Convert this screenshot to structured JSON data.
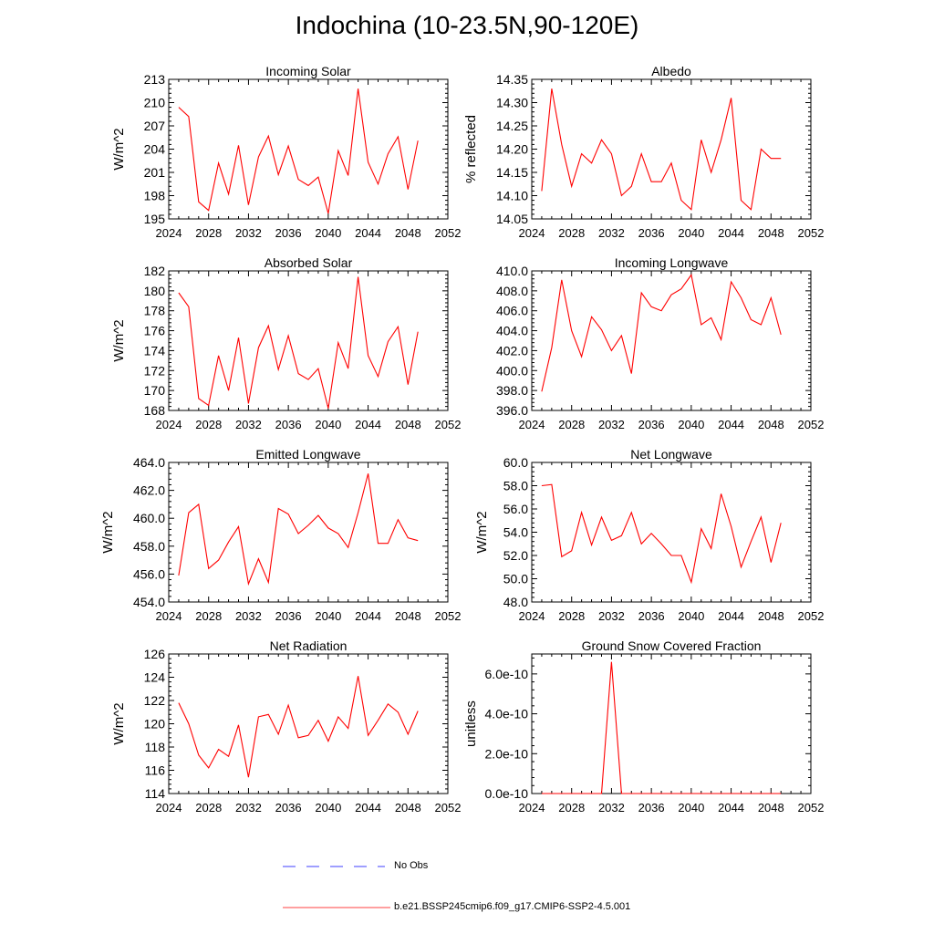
{
  "title": "Indochina (10-23.5N,90-120E)",
  "colors": {
    "model_line": "#ff0000",
    "obs_line": "#0000ff",
    "axis": "#000000"
  },
  "legend": {
    "obs_label": "No Obs",
    "model_label": "b.e21.BSSP245cmip6.f09_g17.CMIP6-SSP2-4.5.001"
  },
  "chart_data": [
    {
      "type": "line",
      "title": "Incoming Solar",
      "ylabel": "W/m^2",
      "x": [
        2025,
        2026,
        2027,
        2028,
        2029,
        2030,
        2031,
        2032,
        2033,
        2034,
        2035,
        2036,
        2037,
        2038,
        2039,
        2040,
        2041,
        2042,
        2043,
        2044,
        2045,
        2046,
        2047,
        2048,
        2049
      ],
      "values": [
        209.4,
        208.2,
        197.2,
        196.1,
        202.2,
        198.2,
        204.5,
        196.8,
        203.0,
        205.7,
        200.7,
        204.4,
        200.1,
        199.3,
        200.4,
        195.7,
        203.8,
        200.6,
        211.8,
        202.3,
        199.5,
        203.4,
        205.6,
        198.8,
        205.1
      ],
      "xlim": [
        2024,
        2052
      ],
      "ylim": [
        195,
        213
      ],
      "xticks": [
        "2024",
        "2028",
        "2032",
        "2036",
        "2040",
        "2044",
        "2048",
        "2052"
      ],
      "yticks": [
        "195",
        "198",
        "201",
        "204",
        "207",
        "210",
        "213"
      ],
      "grid": false
    },
    {
      "type": "line",
      "title": "Albedo",
      "ylabel": "% reflected",
      "x": [
        2025,
        2026,
        2027,
        2028,
        2029,
        2030,
        2031,
        2032,
        2033,
        2034,
        2035,
        2036,
        2037,
        2038,
        2039,
        2040,
        2041,
        2042,
        2043,
        2044,
        2045,
        2046,
        2047,
        2048,
        2049
      ],
      "values": [
        14.11,
        14.33,
        14.21,
        14.12,
        14.19,
        14.17,
        14.22,
        14.19,
        14.1,
        14.12,
        14.19,
        14.13,
        14.13,
        14.17,
        14.09,
        14.07,
        14.22,
        14.15,
        14.22,
        14.31,
        14.09,
        14.07,
        14.2,
        14.18,
        14.18
      ],
      "xlim": [
        2024,
        2052
      ],
      "ylim": [
        14.05,
        14.35
      ],
      "xticks": [
        "2024",
        "2028",
        "2032",
        "2036",
        "2040",
        "2044",
        "2048",
        "2052"
      ],
      "yticks": [
        "14.05",
        "14.10",
        "14.15",
        "14.20",
        "14.25",
        "14.30",
        "14.35"
      ],
      "grid": false
    },
    {
      "type": "line",
      "title": "Absorbed Solar",
      "ylabel": "W/m^2",
      "x": [
        2025,
        2026,
        2027,
        2028,
        2029,
        2030,
        2031,
        2032,
        2033,
        2034,
        2035,
        2036,
        2037,
        2038,
        2039,
        2040,
        2041,
        2042,
        2043,
        2044,
        2045,
        2046,
        2047,
        2048,
        2049
      ],
      "values": [
        179.8,
        178.4,
        169.2,
        168.5,
        173.5,
        170.0,
        175.3,
        168.7,
        174.3,
        176.5,
        172.1,
        175.5,
        171.7,
        171.1,
        172.2,
        168.2,
        174.8,
        172.2,
        181.4,
        173.5,
        171.4,
        174.9,
        176.4,
        170.6,
        175.9
      ],
      "xlim": [
        2024,
        2052
      ],
      "ylim": [
        168,
        182
      ],
      "xticks": [
        "2024",
        "2028",
        "2032",
        "2036",
        "2040",
        "2044",
        "2048",
        "2052"
      ],
      "yticks": [
        "168",
        "170",
        "172",
        "174",
        "176",
        "178",
        "180",
        "182"
      ],
      "grid": false
    },
    {
      "type": "line",
      "title": "Incoming Longwave",
      "ylabel": "",
      "x": [
        2025,
        2026,
        2027,
        2028,
        2029,
        2030,
        2031,
        2032,
        2033,
        2034,
        2035,
        2036,
        2037,
        2038,
        2039,
        2040,
        2041,
        2042,
        2043,
        2044,
        2045,
        2046,
        2047,
        2048,
        2049
      ],
      "values": [
        397.9,
        402.3,
        409.1,
        404.0,
        401.4,
        405.4,
        404.1,
        402.0,
        403.5,
        399.7,
        407.8,
        406.4,
        406.0,
        407.6,
        408.2,
        409.6,
        404.6,
        405.3,
        403.1,
        408.9,
        407.3,
        405.1,
        404.6,
        407.3,
        403.6
      ],
      "xlim": [
        2024,
        2052
      ],
      "ylim": [
        396,
        410
      ],
      "xticks": [
        "2024",
        "2028",
        "2032",
        "2036",
        "2040",
        "2044",
        "2048",
        "2052"
      ],
      "yticks": [
        "396.0",
        "398.0",
        "400.0",
        "402.0",
        "404.0",
        "406.0",
        "408.0",
        "410.0"
      ],
      "grid": false
    },
    {
      "type": "line",
      "title": "Emitted Longwave",
      "ylabel": "W/m^2",
      "x": [
        2025,
        2026,
        2027,
        2028,
        2029,
        2030,
        2031,
        2032,
        2033,
        2034,
        2035,
        2036,
        2037,
        2038,
        2039,
        2040,
        2041,
        2042,
        2043,
        2044,
        2045,
        2046,
        2047,
        2048,
        2049
      ],
      "values": [
        455.9,
        460.4,
        461.0,
        456.4,
        457.0,
        458.3,
        459.4,
        455.3,
        457.1,
        455.4,
        460.7,
        460.3,
        458.9,
        459.5,
        460.2,
        459.3,
        458.9,
        457.9,
        460.4,
        463.2,
        458.2,
        458.2,
        459.9,
        458.6,
        458.4
      ],
      "xlim": [
        2024,
        2052
      ],
      "ylim": [
        454,
        464
      ],
      "xticks": [
        "2024",
        "2028",
        "2032",
        "2036",
        "2040",
        "2044",
        "2048",
        "2052"
      ],
      "yticks": [
        "454.0",
        "456.0",
        "458.0",
        "460.0",
        "462.0",
        "464.0"
      ],
      "grid": false
    },
    {
      "type": "line",
      "title": "Net Longwave",
      "ylabel": "W/m^2",
      "x": [
        2025,
        2026,
        2027,
        2028,
        2029,
        2030,
        2031,
        2032,
        2033,
        2034,
        2035,
        2036,
        2037,
        2038,
        2039,
        2040,
        2041,
        2042,
        2043,
        2044,
        2045,
        2046,
        2047,
        2048,
        2049
      ],
      "values": [
        58.0,
        58.1,
        51.9,
        52.4,
        55.7,
        52.9,
        55.3,
        53.3,
        53.7,
        55.7,
        53.0,
        53.9,
        53.0,
        52.0,
        52.0,
        49.7,
        54.3,
        52.6,
        57.3,
        54.5,
        51.0,
        53.2,
        55.3,
        51.4,
        54.8
      ],
      "xlim": [
        2024,
        2052
      ],
      "ylim": [
        48,
        60
      ],
      "xticks": [
        "2024",
        "2028",
        "2032",
        "2036",
        "2040",
        "2044",
        "2048",
        "2052"
      ],
      "yticks": [
        "48.0",
        "50.0",
        "52.0",
        "54.0",
        "56.0",
        "58.0",
        "60.0"
      ],
      "grid": false
    },
    {
      "type": "line",
      "title": "Net Radiation",
      "ylabel": "W/m^2",
      "x": [
        2025,
        2026,
        2027,
        2028,
        2029,
        2030,
        2031,
        2032,
        2033,
        2034,
        2035,
        2036,
        2037,
        2038,
        2039,
        2040,
        2041,
        2042,
        2043,
        2044,
        2045,
        2046,
        2047,
        2048,
        2049
      ],
      "values": [
        121.8,
        120.0,
        117.3,
        116.2,
        117.8,
        117.2,
        119.9,
        115.4,
        120.6,
        120.8,
        119.1,
        121.6,
        118.8,
        119.0,
        120.3,
        118.5,
        120.6,
        119.6,
        124.1,
        119.0,
        120.3,
        121.7,
        121.0,
        119.1,
        121.1
      ],
      "xlim": [
        2024,
        2052
      ],
      "ylim": [
        114,
        126
      ],
      "xticks": [
        "2024",
        "2028",
        "2032",
        "2036",
        "2040",
        "2044",
        "2048",
        "2052"
      ],
      "yticks": [
        "114",
        "116",
        "118",
        "120",
        "122",
        "124",
        "126"
      ],
      "grid": false
    },
    {
      "type": "line",
      "title": "Ground Snow Covered Fraction",
      "ylabel": "unitless",
      "x": [
        2025,
        2026,
        2027,
        2028,
        2029,
        2030,
        2031,
        2032,
        2033,
        2034,
        2035,
        2036,
        2037,
        2038,
        2039,
        2040,
        2041,
        2042,
        2043,
        2044,
        2045,
        2046,
        2047,
        2048,
        2049
      ],
      "values": [
        0,
        0,
        0,
        0,
        0,
        0,
        0,
        6.6e-10,
        0,
        0,
        0,
        0,
        0,
        0,
        0,
        0,
        0,
        0,
        0,
        0,
        0,
        0,
        0,
        0,
        0
      ],
      "xlim": [
        2024,
        2052
      ],
      "ylim": [
        0,
        7e-10
      ],
      "ytick_values": [
        0,
        2e-10,
        4e-10,
        6e-10
      ],
      "xticks": [
        "2024",
        "2028",
        "2032",
        "2036",
        "2040",
        "2044",
        "2048",
        "2052"
      ],
      "yticks": [
        "0.0e-10",
        "2.0e-10",
        "4.0e-10",
        "6.0e-10"
      ],
      "grid": false
    }
  ]
}
